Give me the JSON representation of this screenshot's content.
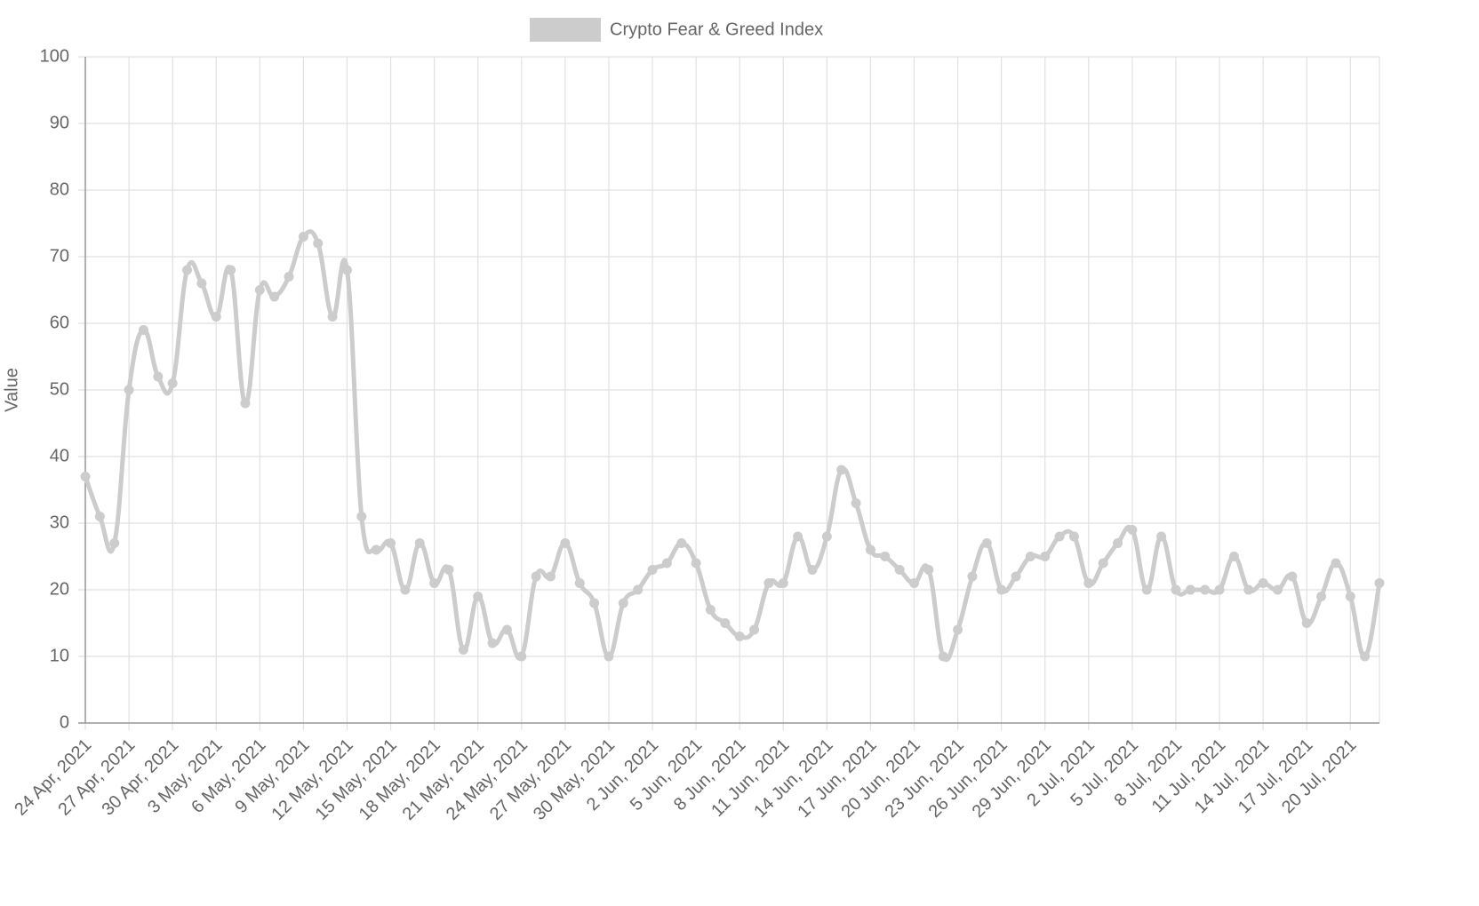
{
  "chart_data": {
    "type": "line",
    "y_label": "Value",
    "categories": [
      "24 Apr, 2021",
      null,
      null,
      "27 Apr, 2021",
      null,
      null,
      "30 Apr, 2021",
      null,
      null,
      "3 May, 2021",
      null,
      null,
      "6 May, 2021",
      null,
      null,
      "9 May, 2021",
      null,
      null,
      "12 May, 2021",
      null,
      null,
      "15 May, 2021",
      null,
      null,
      "18 May, 2021",
      null,
      null,
      "21 May, 2021",
      null,
      null,
      "24 May, 2021",
      null,
      null,
      "27 May, 2021",
      null,
      null,
      "30 May, 2021",
      null,
      null,
      "2 Jun, 2021",
      null,
      null,
      "5 Jun, 2021",
      null,
      null,
      "8 Jun, 2021",
      null,
      null,
      "11 Jun, 2021",
      null,
      null,
      "14 Jun, 2021",
      null,
      null,
      "17 Jun, 2021",
      null,
      null,
      "20 Jun, 2021",
      null,
      null,
      "23 Jun, 2021",
      null,
      null,
      "26 Jun, 2021",
      null,
      null,
      "29 Jun, 2021",
      null,
      null,
      "2 Jul, 2021",
      null,
      null,
      "5 Jul, 2021",
      null,
      null,
      "8 Jul, 2021",
      null,
      null,
      "11 Jul, 2021",
      null,
      null,
      "14 Jul, 2021",
      null,
      null,
      "17 Jul, 2021",
      null,
      null,
      "20 Jul, 2021",
      null,
      null
    ],
    "series": [
      {
        "name": "Crypto Fear & Greed Index",
        "color": "#cccccc",
        "values": [
          37,
          31,
          27,
          50,
          59,
          52,
          51,
          68,
          66,
          61,
          68,
          48,
          65,
          64,
          67,
          73,
          72,
          61,
          68,
          31,
          26,
          27,
          20,
          27,
          21,
          23,
          11,
          19,
          12,
          14,
          10,
          22,
          22,
          27,
          21,
          18,
          10,
          18,
          20,
          23,
          24,
          27,
          24,
          17,
          15,
          13,
          14,
          21,
          21,
          28,
          23,
          28,
          38,
          33,
          26,
          25,
          23,
          21,
          23,
          10,
          14,
          22,
          27,
          20,
          22,
          25,
          25,
          28,
          28,
          21,
          24,
          27,
          29,
          20,
          28,
          20,
          20,
          20,
          20,
          25,
          20,
          21,
          20,
          22,
          15,
          19,
          24,
          19,
          10,
          21
        ]
      }
    ],
    "ylim": [
      0,
      100
    ],
    "yticks": [
      0,
      10,
      20,
      30,
      40,
      50,
      60,
      70,
      80,
      90,
      100
    ],
    "grid": true,
    "legend": "top"
  }
}
